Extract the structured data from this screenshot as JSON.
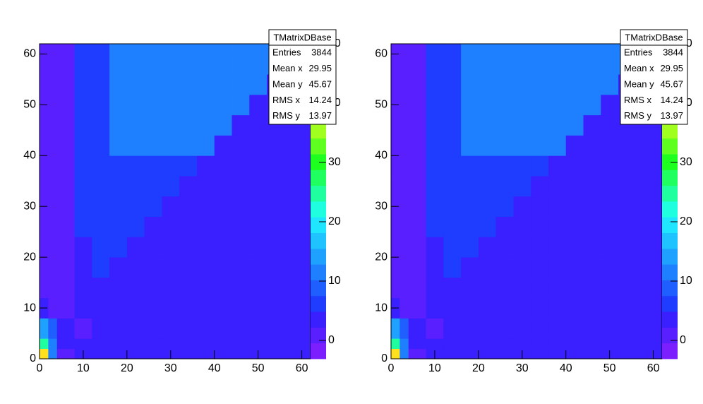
{
  "chart_data": [
    {
      "type": "heatmap",
      "x_edges": [
        0,
        2,
        4,
        8,
        12,
        16,
        20,
        24,
        28,
        32,
        36,
        40,
        44,
        48,
        52,
        56,
        60,
        62
      ],
      "y_edges": [
        0,
        2,
        4,
        8,
        12,
        16,
        20,
        24,
        28,
        32,
        36,
        40,
        44,
        48,
        52,
        56,
        60,
        62
      ],
      "z": [
        [
          40,
          12,
          1,
          2.5,
          2.5,
          2.5,
          2.5,
          2.5,
          2.5,
          2.5,
          2.5,
          2.5,
          2.5,
          2.5,
          2.5,
          2.5,
          2.5
        ],
        [
          25,
          12,
          4,
          2.5,
          2.5,
          2.5,
          2.5,
          2.5,
          2.5,
          2.5,
          2.5,
          2.5,
          2.5,
          2.5,
          2.5,
          2.5,
          2.5
        ],
        [
          14,
          9,
          4,
          1,
          2.5,
          2.5,
          2.5,
          2.5,
          2.5,
          2.5,
          2.5,
          2.5,
          2.5,
          2.5,
          2.5,
          2.5,
          2.5
        ],
        [
          4,
          2,
          1,
          2.5,
          2.5,
          2.5,
          2.5,
          2.5,
          2.5,
          2.5,
          2.5,
          2.5,
          2.5,
          2.5,
          2.5,
          2.5,
          2.5
        ],
        [
          0,
          0,
          0,
          2.5,
          2.5,
          2.5,
          2.5,
          2.5,
          2.5,
          2.5,
          2.5,
          2.5,
          2.5,
          2.5,
          2.5,
          2.5,
          2.5
        ],
        [
          0,
          0,
          0,
          2.5,
          5.5,
          2.5,
          2.5,
          2.5,
          2.5,
          2.5,
          2.5,
          2.5,
          2.5,
          2.5,
          2.5,
          2.5,
          2.5
        ],
        [
          0,
          0,
          0,
          2.5,
          5.5,
          5.5,
          2.5,
          2.5,
          2.5,
          2.5,
          2.5,
          2.5,
          2.5,
          2.5,
          2.5,
          2.5,
          2.5
        ],
        [
          0,
          0,
          0,
          5.5,
          5.5,
          5.5,
          5.5,
          2.5,
          2.5,
          2.5,
          2.5,
          2.5,
          2.5,
          2.5,
          2.5,
          2.5,
          2.5
        ],
        [
          0,
          0,
          0,
          5.5,
          5.5,
          5.5,
          5.5,
          5.5,
          2.5,
          2.5,
          2.5,
          2.5,
          2.5,
          2.5,
          2.5,
          2.5,
          2.5
        ],
        [
          0,
          0,
          0,
          5.5,
          5.5,
          5.5,
          5.5,
          5.5,
          5.5,
          2.5,
          2.5,
          2.5,
          2.5,
          2.5,
          2.5,
          2.5,
          2.5
        ],
        [
          0,
          0,
          0,
          5.5,
          5.5,
          5.5,
          5.5,
          5.5,
          5.5,
          5.5,
          2.5,
          2.5,
          2.5,
          2.5,
          2.5,
          2.5,
          2.5
        ],
        [
          0,
          0,
          0,
          5.5,
          5.5,
          11,
          11,
          11,
          11,
          11,
          11,
          2.5,
          2.5,
          2.5,
          2.5,
          2.5,
          2.5
        ],
        [
          0,
          0,
          0,
          5.5,
          5.5,
          11,
          11,
          11,
          11,
          11,
          11,
          11,
          2.5,
          2.5,
          2.5,
          2.5,
          2.5
        ],
        [
          0,
          0,
          0,
          5.5,
          5.5,
          11,
          11,
          11,
          11,
          11,
          11,
          11,
          11,
          2.5,
          2.5,
          2.5,
          2.5
        ],
        [
          0,
          0,
          0,
          5.5,
          5.5,
          11,
          11,
          11,
          11,
          11,
          11,
          11,
          11,
          11,
          2.5,
          2.5,
          2.5
        ],
        [
          0,
          0,
          0,
          5.5,
          5.5,
          11,
          11,
          11,
          11,
          11,
          11,
          11,
          11,
          11,
          11,
          11,
          2.5
        ],
        [
          0,
          0,
          0,
          5.5,
          5.5,
          11,
          11,
          11,
          11,
          11,
          11,
          11,
          11,
          11,
          11,
          11,
          11
        ]
      ],
      "xlim": [
        0,
        62
      ],
      "ylim": [
        0,
        62
      ],
      "zlim": [
        -3.1,
        50
      ],
      "xticks": [
        0,
        10,
        20,
        30,
        40,
        50,
        60
      ],
      "yticks": [
        0,
        10,
        20,
        30,
        40,
        50,
        60
      ],
      "zticks": [
        0,
        10,
        20,
        30,
        40,
        50
      ],
      "palette": [
        "#7c1fff",
        "#5a1fff",
        "#3a1fff",
        "#1f3dff",
        "#1f5fff",
        "#1f80ff",
        "#1fa2ff",
        "#1fc3ff",
        "#1fe5ff",
        "#1fffe0",
        "#1fffa0",
        "#1fff5f",
        "#1fff1f",
        "#5fff1f",
        "#a0ff1f",
        "#e0ff1f",
        "#ffe01f",
        "#ffa01f",
        "#ff5f1f",
        "#ff1f1f"
      ],
      "stats": {
        "title": "TMatrixDBase",
        "rows": [
          {
            "label": "Entries",
            "value": 3844
          },
          {
            "label": "Mean x",
            "value": 29.95
          },
          {
            "label": "Mean y",
            "value": 45.67
          },
          {
            "label": "RMS x",
            "value": 14.24
          },
          {
            "label": "RMS y",
            "value": 13.97
          }
        ]
      }
    },
    {
      "type": "heatmap",
      "x_edges": [
        0,
        2,
        4,
        8,
        12,
        16,
        20,
        24,
        28,
        32,
        36,
        40,
        44,
        48,
        52,
        56,
        60,
        62
      ],
      "y_edges": [
        0,
        2,
        4,
        8,
        12,
        16,
        20,
        24,
        28,
        32,
        36,
        40,
        44,
        48,
        52,
        56,
        60,
        62
      ],
      "z": [
        [
          40,
          12,
          1,
          2.5,
          2.5,
          2.5,
          2.5,
          2.5,
          2.5,
          2.5,
          2.5,
          2.5,
          2.5,
          2.5,
          2.5,
          2.5,
          2.5
        ],
        [
          25,
          12,
          4,
          2.5,
          2.5,
          2.5,
          2.5,
          2.5,
          2.5,
          2.5,
          2.5,
          2.5,
          2.5,
          2.5,
          2.5,
          2.5,
          2.5
        ],
        [
          14,
          9,
          4,
          1,
          2.5,
          2.5,
          2.5,
          2.5,
          2.5,
          2.5,
          2.5,
          2.5,
          2.5,
          2.5,
          2.5,
          2.5,
          2.5
        ],
        [
          4,
          2,
          1,
          2.5,
          2.5,
          2.5,
          2.5,
          2.5,
          2.5,
          2.5,
          2.5,
          2.5,
          2.5,
          2.5,
          2.5,
          2.5,
          2.5
        ],
        [
          0,
          0,
          0,
          2.5,
          2.5,
          2.5,
          2.5,
          2.5,
          2.5,
          2.5,
          2.5,
          2.5,
          2.5,
          2.5,
          2.5,
          2.5,
          2.5
        ],
        [
          0,
          0,
          0,
          2.5,
          5.5,
          2.5,
          2.5,
          2.5,
          2.5,
          2.5,
          2.5,
          2.5,
          2.5,
          2.5,
          2.5,
          2.5,
          2.5
        ],
        [
          0,
          0,
          0,
          2.5,
          5.5,
          5.5,
          2.5,
          2.5,
          2.5,
          2.5,
          2.5,
          2.5,
          2.5,
          2.5,
          2.5,
          2.5,
          2.5
        ],
        [
          0,
          0,
          0,
          5.5,
          5.5,
          5.5,
          5.5,
          2.5,
          2.5,
          2.5,
          2.5,
          2.5,
          2.5,
          2.5,
          2.5,
          2.5,
          2.5
        ],
        [
          0,
          0,
          0,
          5.5,
          5.5,
          5.5,
          5.5,
          5.5,
          2.5,
          2.5,
          2.5,
          2.5,
          2.5,
          2.5,
          2.5,
          2.5,
          2.5
        ],
        [
          0,
          0,
          0,
          5.5,
          5.5,
          5.5,
          5.5,
          5.5,
          5.5,
          2.5,
          2.5,
          2.5,
          2.5,
          2.5,
          2.5,
          2.5,
          2.5
        ],
        [
          0,
          0,
          0,
          5.5,
          5.5,
          5.5,
          5.5,
          5.5,
          5.5,
          5.5,
          2.5,
          2.5,
          2.5,
          2.5,
          2.5,
          2.5,
          2.5
        ],
        [
          0,
          0,
          0,
          5.5,
          5.5,
          11,
          11,
          11,
          11,
          11,
          11,
          2.5,
          2.5,
          2.5,
          2.5,
          2.5,
          2.5
        ],
        [
          0,
          0,
          0,
          5.5,
          5.5,
          11,
          11,
          11,
          11,
          11,
          11,
          11,
          2.5,
          2.5,
          2.5,
          2.5,
          2.5
        ],
        [
          0,
          0,
          0,
          5.5,
          5.5,
          11,
          11,
          11,
          11,
          11,
          11,
          11,
          11,
          2.5,
          2.5,
          2.5,
          2.5
        ],
        [
          0,
          0,
          0,
          5.5,
          5.5,
          11,
          11,
          11,
          11,
          11,
          11,
          11,
          11,
          11,
          2.5,
          2.5,
          2.5
        ],
        [
          0,
          0,
          0,
          5.5,
          5.5,
          11,
          11,
          11,
          11,
          11,
          11,
          11,
          11,
          11,
          11,
          11,
          2.5
        ],
        [
          0,
          0,
          0,
          5.5,
          5.5,
          11,
          11,
          11,
          11,
          11,
          11,
          11,
          11,
          11,
          11,
          11,
          11
        ]
      ],
      "xlim": [
        0,
        62
      ],
      "ylim": [
        0,
        62
      ],
      "zlim": [
        -3.1,
        50
      ],
      "xticks": [
        0,
        10,
        20,
        30,
        40,
        50,
        60
      ],
      "yticks": [
        0,
        10,
        20,
        30,
        40,
        50,
        60
      ],
      "zticks": [
        0,
        10,
        20,
        30,
        40,
        50
      ],
      "palette": [
        "#7c1fff",
        "#5a1fff",
        "#3a1fff",
        "#1f3dff",
        "#1f5fff",
        "#1f80ff",
        "#1fa2ff",
        "#1fc3ff",
        "#1fe5ff",
        "#1fffe0",
        "#1fffa0",
        "#1fff5f",
        "#1fff1f",
        "#5fff1f",
        "#a0ff1f",
        "#e0ff1f",
        "#ffe01f",
        "#ffa01f",
        "#ff5f1f",
        "#ff1f1f"
      ],
      "stats": {
        "title": "TMatrixDBase",
        "rows": [
          {
            "label": "Entries",
            "value": 3844
          },
          {
            "label": "Mean x",
            "value": 29.95
          },
          {
            "label": "Mean y",
            "value": 45.67
          },
          {
            "label": "RMS x",
            "value": 14.24
          },
          {
            "label": "RMS y",
            "value": 13.97
          }
        ]
      }
    }
  ]
}
